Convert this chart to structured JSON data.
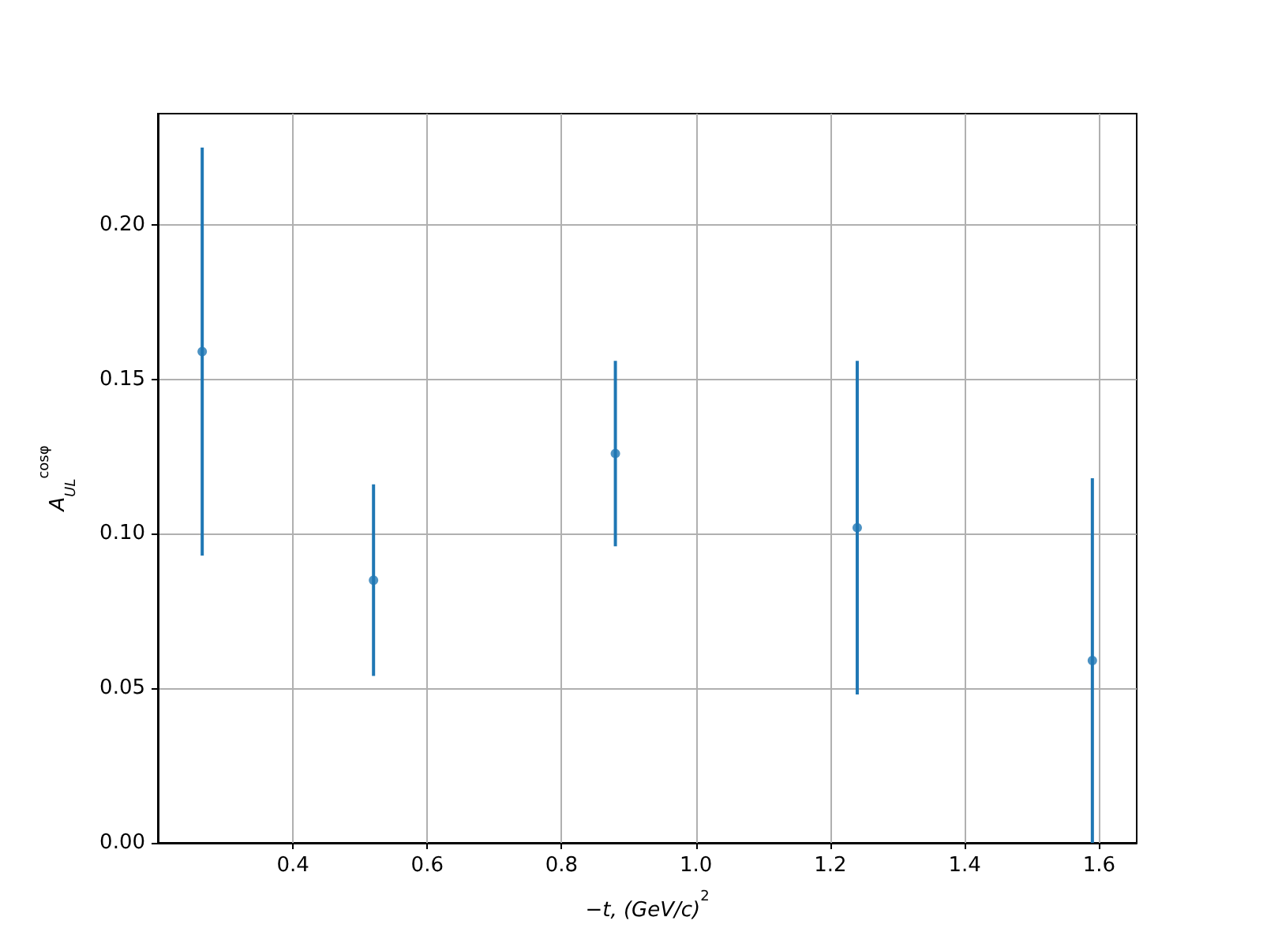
{
  "chart_data": {
    "type": "scatter",
    "xlabel": "−t, (GeV/c)$^{2}$",
    "ylabel": "A$_{UL}$$^{cosφ}$",
    "x": [
      0.265,
      0.52,
      0.88,
      1.24,
      1.59
    ],
    "series": [
      {
        "color": "#1f77b4",
        "values": [
          0.159,
          0.085,
          0.126,
          0.102,
          0.059
        ],
        "errors": [
          0.066,
          0.031,
          0.03,
          0.054,
          0.059
        ]
      }
    ],
    "xlim": [
      0.199,
      1.656
    ],
    "ylim": [
      0,
      0.236
    ],
    "xticks": [
      0.4,
      0.6,
      0.8,
      {
        "value": 1.0,
        "label": "1.0"
      },
      1.2,
      1.4,
      1.6
    ],
    "yticks": [
      {
        "value": 0,
        "label": "0.00"
      },
      0.05,
      {
        "value": 0.1,
        "label": "0.10"
      },
      0.15,
      {
        "value": 0.2,
        "label": "0.20"
      }
    ],
    "grid": true,
    "marker": "circle"
  }
}
